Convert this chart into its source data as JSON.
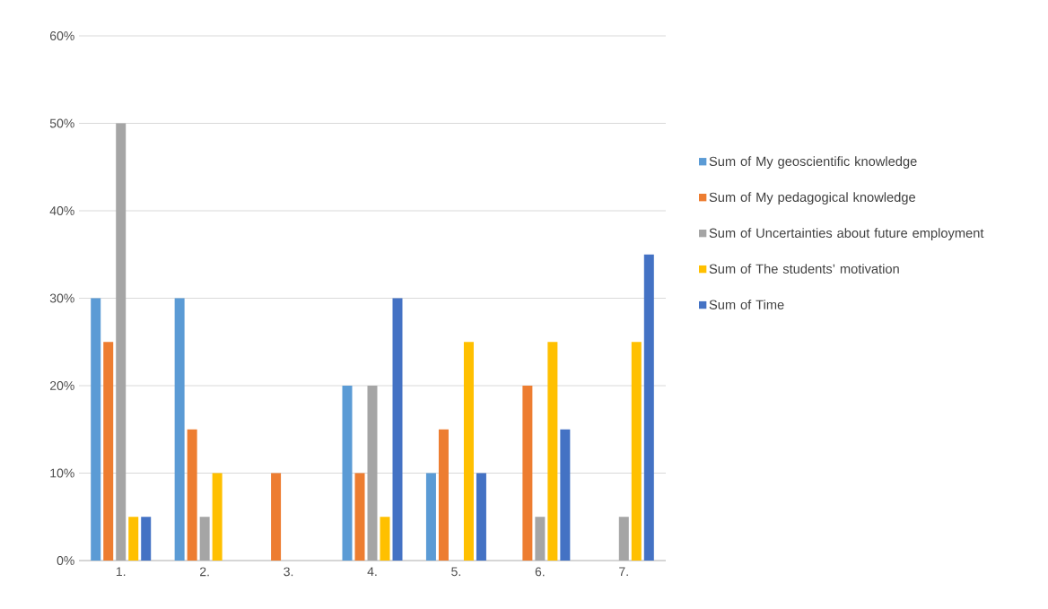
{
  "chart_data": {
    "type": "bar",
    "categories": [
      "1.",
      "2.",
      "3.",
      "4.",
      "5.",
      "6.",
      "7."
    ],
    "series": [
      {
        "name": "Sum of My geoscientific knowledge",
        "color": "#5b9bd5",
        "values": [
          30,
          30,
          0,
          20,
          10,
          0,
          0
        ]
      },
      {
        "name": "Sum of My pedagogical knowledge",
        "color": "#ed7d31",
        "values": [
          25,
          15,
          10,
          10,
          15,
          20,
          0
        ]
      },
      {
        "name": "Sum of Uncertainties about future employment",
        "color": "#a5a5a5",
        "values": [
          50,
          5,
          0,
          20,
          0,
          5,
          5
        ]
      },
      {
        "name": "Sum of The students’ motivation",
        "color": "#ffc000",
        "values": [
          5,
          10,
          0,
          5,
          25,
          25,
          25
        ]
      },
      {
        "name": "Sum of Time",
        "color": "#4472c4",
        "values": [
          5,
          0,
          0,
          30,
          10,
          15,
          35
        ]
      }
    ],
    "ylim": [
      0,
      60
    ],
    "yticks": [
      {
        "value": 0,
        "label": "0%"
      },
      {
        "value": 10,
        "label": "10%"
      },
      {
        "value": 20,
        "label": "20%"
      },
      {
        "value": 30,
        "label": "30%"
      },
      {
        "value": 40,
        "label": "40%"
      },
      {
        "value": 50,
        "label": "50%"
      },
      {
        "value": 60,
        "label": "60%"
      }
    ],
    "grid": "y",
    "legend": "right"
  }
}
